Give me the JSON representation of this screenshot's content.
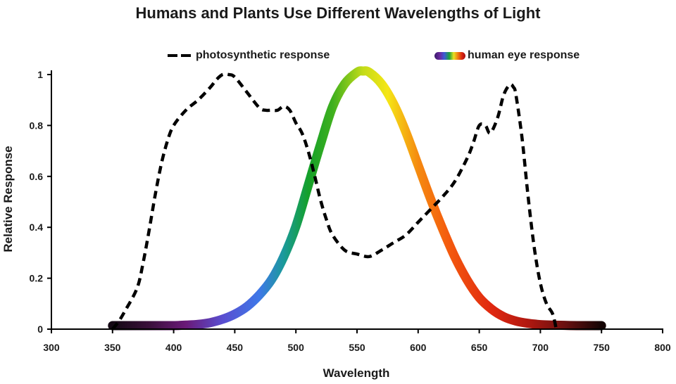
{
  "chart_data": {
    "type": "line",
    "title": "Humans and Plants Use Different Wavelengths of Light",
    "xlabel": "Wavelength",
    "ylabel": "Relative Response",
    "xlim": [
      300,
      800
    ],
    "ylim": [
      0,
      1
    ],
    "xticks": [
      300,
      350,
      400,
      450,
      500,
      550,
      600,
      650,
      700,
      750,
      800
    ],
    "yticks": [
      0,
      0.2,
      0.4,
      0.6,
      0.8,
      1
    ],
    "ytick_labels": [
      "0",
      "0.2",
      "0.4",
      "0.6",
      "0.8",
      "1"
    ],
    "grid": false,
    "legend_position": "top",
    "series": [
      {
        "name": "photosynthetic response",
        "style": "dashed",
        "color": "#000000",
        "x": [
          350,
          355,
          360,
          370,
          375,
          380,
          385,
          390,
          395,
          400,
          410,
          420,
          430,
          435,
          440,
          445,
          450,
          460,
          470,
          475,
          480,
          485,
          490,
          495,
          500,
          505,
          510,
          515,
          520,
          525,
          530,
          540,
          550,
          560,
          570,
          580,
          590,
          600,
          610,
          620,
          630,
          640,
          645,
          650,
          655,
          659,
          665,
          670,
          675,
          678,
          680,
          685,
          690,
          695,
          700,
          705,
          710,
          713
        ],
        "y": [
          0.0,
          0.03,
          0.07,
          0.16,
          0.26,
          0.39,
          0.53,
          0.65,
          0.74,
          0.8,
          0.86,
          0.9,
          0.95,
          0.98,
          1.0,
          1.0,
          0.99,
          0.93,
          0.87,
          0.86,
          0.86,
          0.86,
          0.875,
          0.86,
          0.81,
          0.77,
          0.7,
          0.61,
          0.51,
          0.43,
          0.37,
          0.31,
          0.295,
          0.285,
          0.31,
          0.34,
          0.37,
          0.42,
          0.47,
          0.52,
          0.58,
          0.67,
          0.73,
          0.8,
          0.8,
          0.77,
          0.83,
          0.92,
          0.96,
          0.95,
          0.92,
          0.75,
          0.52,
          0.32,
          0.18,
          0.1,
          0.06,
          0.0
        ]
      },
      {
        "name": "human eye response",
        "style": "spectral-gradient",
        "x": [
          350,
          360,
          370,
          380,
          390,
          400,
          410,
          420,
          430,
          440,
          450,
          460,
          470,
          480,
          490,
          500,
          510,
          520,
          530,
          540,
          550,
          555,
          560,
          570,
          580,
          590,
          600,
          610,
          620,
          630,
          640,
          650,
          660,
          670,
          680,
          690,
          700,
          710,
          720,
          730,
          740,
          750
        ],
        "y": [
          0.0,
          0.0,
          0.0,
          0.0,
          0.0,
          0.0,
          0.002,
          0.005,
          0.012,
          0.025,
          0.045,
          0.075,
          0.12,
          0.18,
          0.27,
          0.39,
          0.55,
          0.71,
          0.86,
          0.95,
          0.995,
          1.0,
          0.995,
          0.95,
          0.87,
          0.76,
          0.63,
          0.5,
          0.38,
          0.27,
          0.18,
          0.11,
          0.065,
          0.035,
          0.018,
          0.009,
          0.004,
          0.002,
          0.001,
          0.0,
          0.0,
          0.0
        ]
      }
    ]
  },
  "legend": {
    "photo_label": "photosynthetic response",
    "eye_label": "human eye response"
  },
  "colors": {
    "axis": "#000000",
    "dashed_line": "#000000",
    "spectrum": [
      {
        "nm": 350,
        "color": "#140814"
      },
      {
        "nm": 380,
        "color": "#3a0f3a"
      },
      {
        "nm": 410,
        "color": "#6a1a78"
      },
      {
        "nm": 440,
        "color": "#5a4ed0"
      },
      {
        "nm": 470,
        "color": "#3e78e8"
      },
      {
        "nm": 490,
        "color": "#1a9a9a"
      },
      {
        "nm": 510,
        "color": "#14a02a"
      },
      {
        "nm": 530,
        "color": "#3fb01e"
      },
      {
        "nm": 555,
        "color": "#c4dc18"
      },
      {
        "nm": 575,
        "color": "#f5e616"
      },
      {
        "nm": 600,
        "color": "#f58a10"
      },
      {
        "nm": 625,
        "color": "#f45a0e"
      },
      {
        "nm": 660,
        "color": "#e02810"
      },
      {
        "nm": 690,
        "color": "#b01810"
      },
      {
        "nm": 720,
        "color": "#6a1010"
      },
      {
        "nm": 750,
        "color": "#140404"
      }
    ]
  }
}
